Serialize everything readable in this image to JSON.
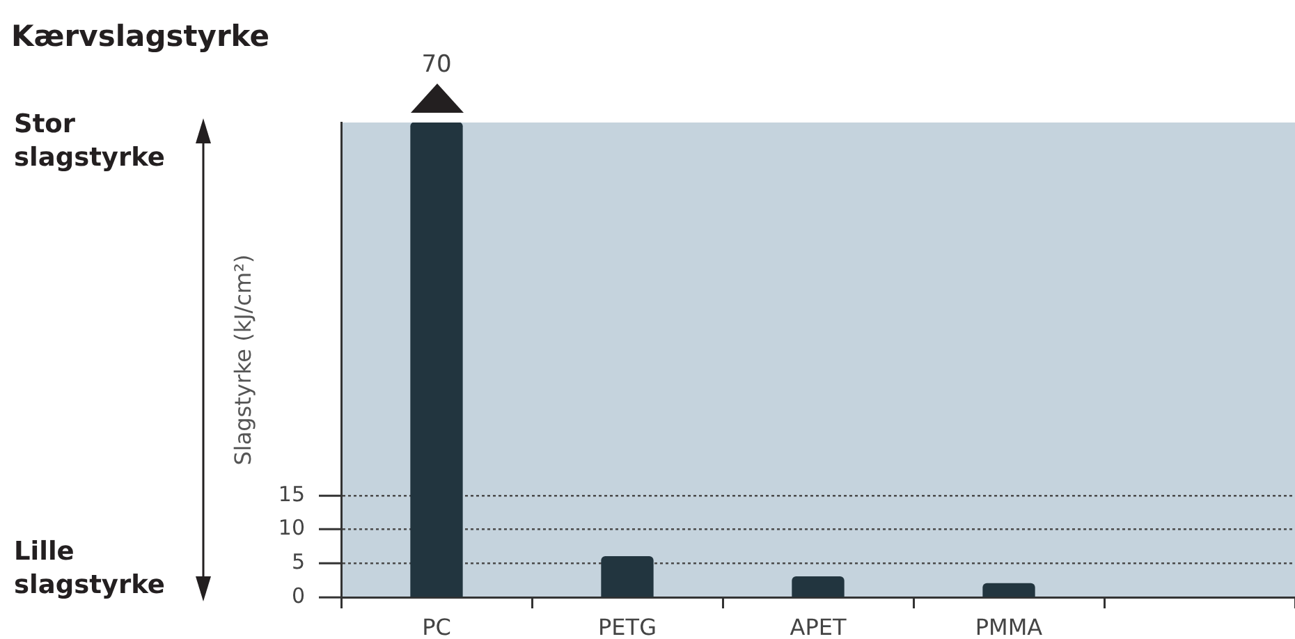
{
  "chart_data": {
    "type": "bar",
    "title": "Kærvslagstyrke",
    "ylabel": "Slagstyrke (kJ/cm²)",
    "categories": [
      "PC",
      "PETG",
      "APET",
      "PMMA",
      null
    ],
    "values": [
      70,
      6,
      3,
      2,
      null
    ],
    "value_labels": [
      "70",
      null,
      null,
      null,
      null
    ],
    "color": "#22353f",
    "ylim": [
      0,
      70
    ],
    "yticks": [
      0,
      5,
      10,
      15
    ],
    "grid": "y",
    "annotations": [
      "Stor slagstyrke",
      "Lille slagstyrke"
    ]
  }
}
